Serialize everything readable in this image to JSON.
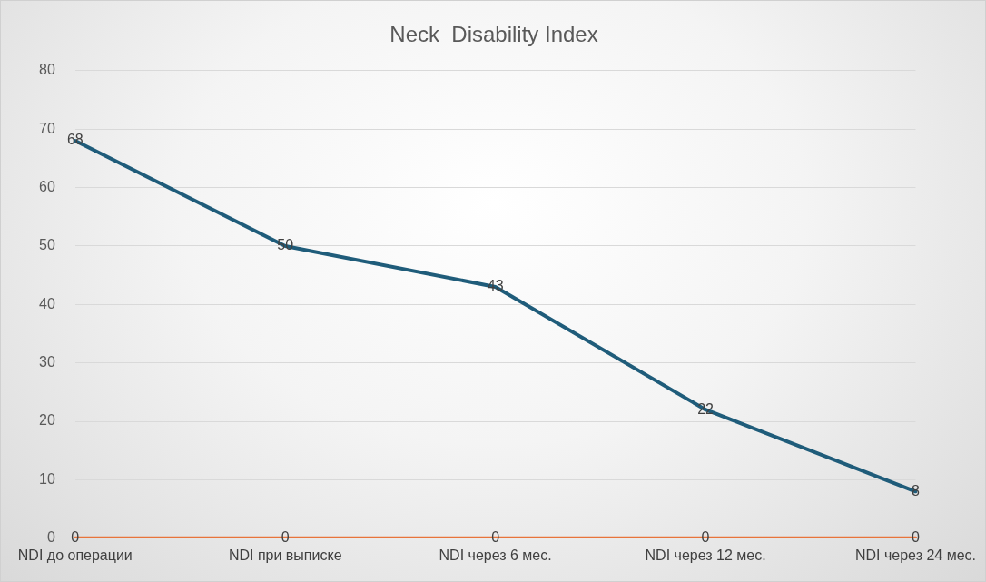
{
  "chart_data": {
    "type": "line",
    "title": "Neck  Disability Index",
    "categories": [
      "NDI до операции",
      "NDI при выписке",
      "NDI через 6 мес.",
      "NDI через 12 мес.",
      "NDI через 24 мес."
    ],
    "series": [
      {
        "color": "#1f5c7a",
        "values": [
          68,
          50,
          43,
          22,
          8
        ]
      },
      {
        "color": "#e8743b",
        "values": [
          0,
          0,
          0,
          0,
          0
        ]
      }
    ],
    "ylim": [
      0,
      80
    ],
    "yticks": [
      0,
      10,
      20,
      30,
      40,
      50,
      60,
      70,
      80
    ],
    "grid": "y",
    "legend": false,
    "marker": "none",
    "line_style": "solid",
    "data_labels": true
  }
}
